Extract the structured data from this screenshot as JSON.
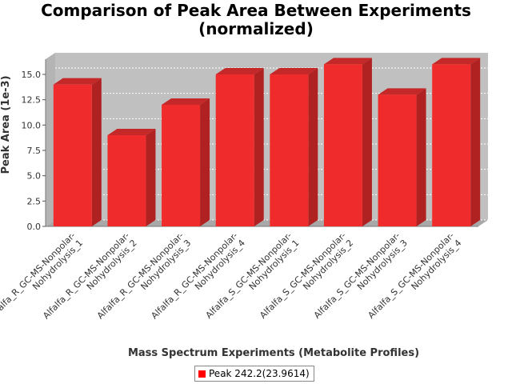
{
  "chart_data": {
    "type": "bar",
    "title_lines": [
      "Comparison of Peak Area Between Experiments",
      "(normalized)"
    ],
    "xlabel": "Mass Spectrum Experiments (Metabolite Profiles)",
    "ylabel": "Peak Area (1e-3)",
    "ylim": [
      0,
      16.5
    ],
    "yticks": [
      "0.0",
      "2.5",
      "5.0",
      "7.5",
      "10.0",
      "12.5",
      "15.0"
    ],
    "categories": [
      [
        "Alfalfa_R_GC-MS-Nonpolar-",
        "Nohydrolysis_1"
      ],
      [
        "Alfalfa_R_GC-MS-Nonpolar-",
        "Nohydrolysis_2"
      ],
      [
        "Alfalfa_R_GC-MS-Nonpolar-",
        "Nohydrolysis_3"
      ],
      [
        "Alfalfa_R_GC-MS-Nonpolar-",
        "Nohydrolysis_4"
      ],
      [
        "Alfalfa_S_GC-MS-Nonpolar-",
        "Nohydrolysis_1"
      ],
      [
        "Alfalfa_S_GC-MS-Nonpolar-",
        "Nohydrolysis_2"
      ],
      [
        "Alfalfa_S_GC-MS-Nonpolar-",
        "Nohydrolysis_3"
      ],
      [
        "Alfalfa_S_GC-MS-Nonpolar-",
        "Nohydrolysis_4"
      ]
    ],
    "series": [
      {
        "name": "Peak 242.2(23.9614)",
        "values": [
          14.0,
          9.0,
          12.0,
          15.0,
          15.0,
          16.0,
          13.0,
          16.0
        ]
      }
    ],
    "legend": "bottom",
    "grid": true,
    "colors": {
      "bar_front": "#ef2b2b",
      "bar_side": "#b02222",
      "bar_top": "#c42828",
      "plot_bg": "#c0c0c0",
      "grid": "#ffffff"
    }
  },
  "legend": {
    "label": "Peak 242.2(23.9614)"
  }
}
